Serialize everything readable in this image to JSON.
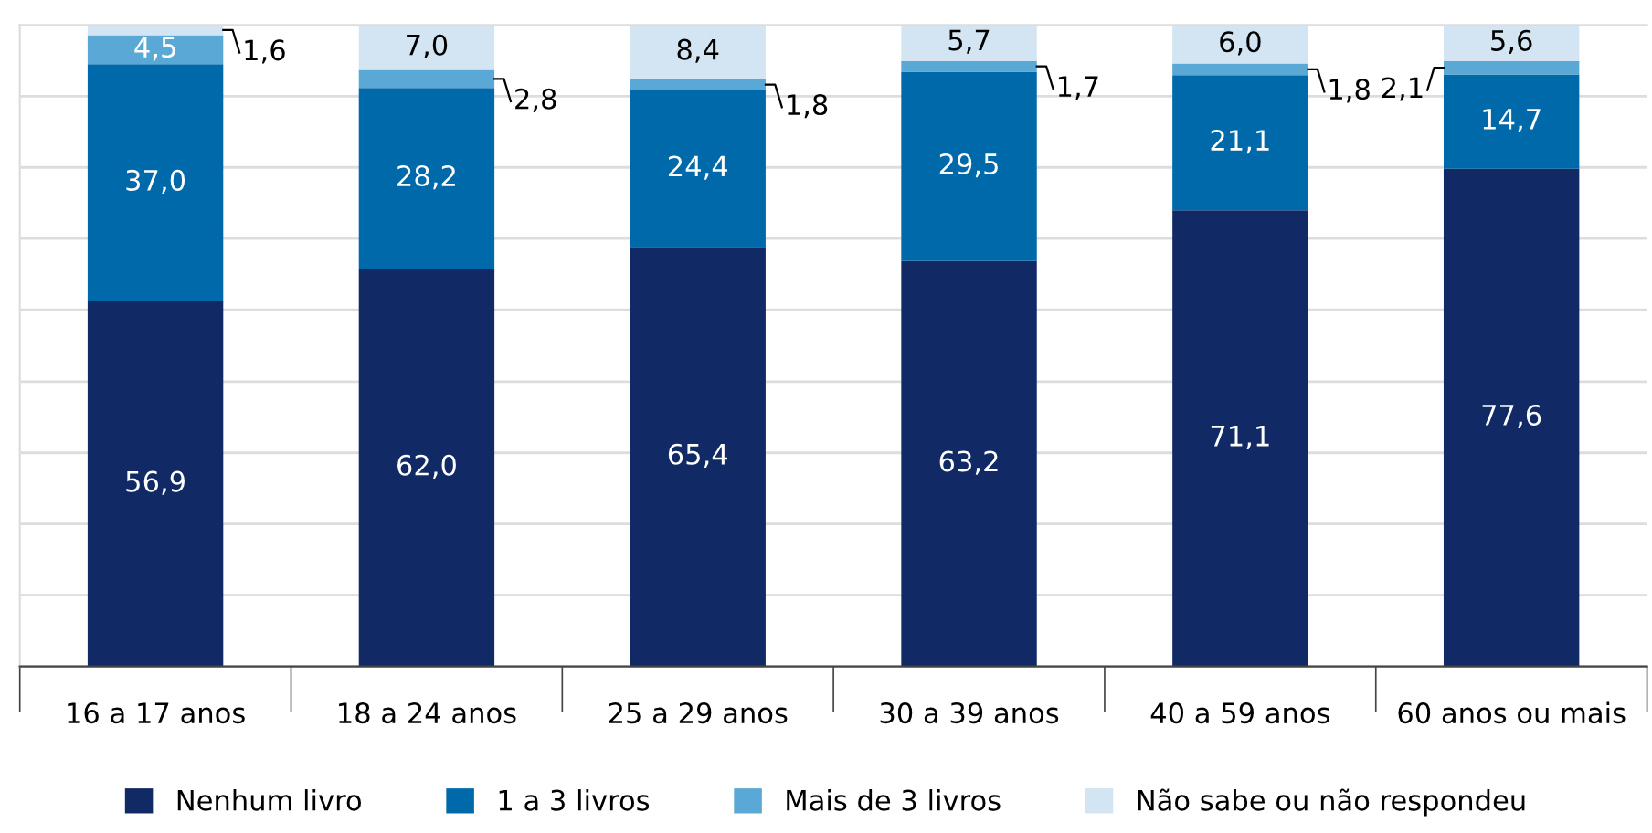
{
  "chart_data": {
    "type": "bar",
    "stacked": true,
    "categories": [
      "16 a 17 anos",
      "18 a 24 anos",
      "25 a 29 anos",
      "30 a 39 anos",
      "40 a 59 anos",
      "60 anos ou mais"
    ],
    "series": [
      {
        "name": "Nenhum livro",
        "color": "#112a66",
        "values": [
          56.9,
          62.0,
          65.4,
          63.2,
          71.1,
          77.6
        ],
        "value_labels": [
          "56,9",
          "62,0",
          "65,4",
          "63,2",
          "71,1",
          "77,6"
        ]
      },
      {
        "name": "1 a 3 livros",
        "color": "#0069aa",
        "values": [
          37.0,
          28.2,
          24.4,
          29.5,
          21.1,
          14.7
        ],
        "value_labels": [
          "37,0",
          "28,2",
          "24,4",
          "29,5",
          "21,1",
          "14,7"
        ]
      },
      {
        "name": "Mais de 3 livros",
        "color": "#5aa8d6",
        "values": [
          4.5,
          2.8,
          1.8,
          1.7,
          1.8,
          2.1
        ],
        "value_labels": [
          "4,5",
          "2,8",
          "1,8",
          "1,7",
          "1,8",
          "2,1"
        ]
      },
      {
        "name": "Não sabe ou não respondeu",
        "color": "#d3e5f2",
        "values": [
          1.6,
          7.0,
          8.4,
          5.7,
          6.0,
          5.6
        ],
        "value_labels": [
          "1,6",
          "7,0",
          "8,4",
          "5,7",
          "6,0",
          "5,6"
        ]
      }
    ],
    "ylim": [
      0,
      100
    ],
    "yticks": [
      {
        "value": 0,
        "label": null
      },
      {
        "value": 11.1,
        "label": null
      },
      {
        "value": 22.2,
        "label": null
      },
      {
        "value": 33.3,
        "label": null
      },
      {
        "value": 44.4,
        "label": null
      },
      {
        "value": 55.6,
        "label": null
      },
      {
        "value": 66.7,
        "label": null
      },
      {
        "value": 77.8,
        "label": null
      },
      {
        "value": 88.9,
        "label": null
      },
      {
        "value": 100,
        "label": null
      }
    ],
    "tick_labels": "x",
    "grid": "y",
    "legend": "bottom"
  }
}
